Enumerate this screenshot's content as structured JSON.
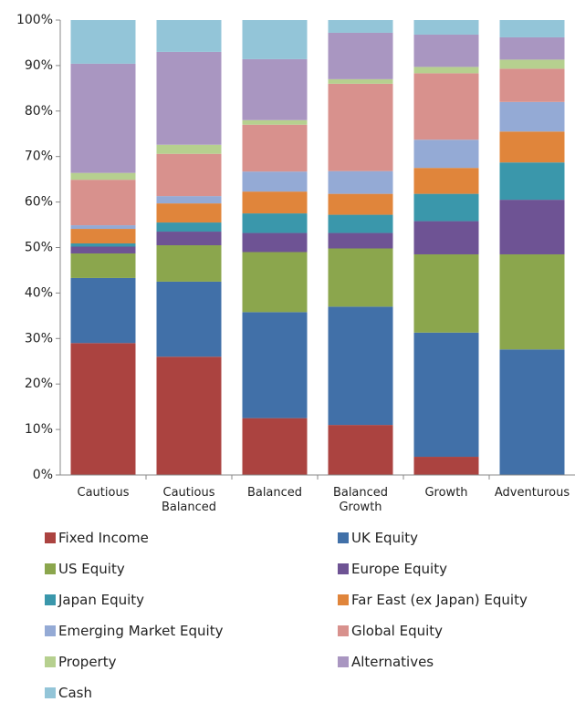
{
  "chart_data": {
    "type": "stacked_bar",
    "categories": [
      "Cautious",
      "Cautious Balanced",
      "Balanced",
      "Balanced Growth",
      "Growth",
      "Adventurous"
    ],
    "ylim": [
      0,
      100
    ],
    "yticks": [
      {
        "value": 0,
        "label": "0%"
      },
      {
        "value": 10,
        "label": "10%"
      },
      {
        "value": 20,
        "label": "20%"
      },
      {
        "value": 30,
        "label": "30%"
      },
      {
        "value": 40,
        "label": "40%"
      },
      {
        "value": 50,
        "label": "50%"
      },
      {
        "value": 60,
        "label": "60%"
      },
      {
        "value": 70,
        "label": "70%"
      },
      {
        "value": 80,
        "label": "80%"
      },
      {
        "value": 90,
        "label": "90%"
      },
      {
        "value": 100,
        "label": "100%"
      }
    ],
    "grid": false,
    "legend": "bottom",
    "series": [
      {
        "name": "Fixed Income",
        "color": "#ab4340",
        "values": [
          29,
          26,
          12.5,
          11,
          4,
          0
        ]
      },
      {
        "name": "UK Equity",
        "color": "#4170a8",
        "values": [
          14.3,
          16.5,
          23.3,
          26,
          27.3,
          27.6
        ]
      },
      {
        "name": "US Equity",
        "color": "#8ba64d",
        "values": [
          5.4,
          8,
          13.2,
          12.8,
          17.2,
          20.9
        ]
      },
      {
        "name": "Europe Equity",
        "color": "#6e5394",
        "values": [
          1.5,
          3,
          4.2,
          3.4,
          7.3,
          12
        ]
      },
      {
        "name": "Japan Equity",
        "color": "#3a97ab",
        "values": [
          0.7,
          2,
          4.3,
          4,
          6,
          8.2
        ]
      },
      {
        "name": "Far East (ex Japan) Equity",
        "color": "#e0853b",
        "values": [
          3.2,
          4.2,
          4.8,
          4.6,
          5.7,
          6.8
        ]
      },
      {
        "name": "Emerging Market Equity",
        "color": "#94aad5",
        "values": [
          0.8,
          1.6,
          4.4,
          5,
          6.2,
          6.5
        ]
      },
      {
        "name": "Global Equity",
        "color": "#d8918d",
        "values": [
          10,
          9.3,
          10.3,
          19.2,
          14.6,
          7.3
        ]
      },
      {
        "name": "Property",
        "color": "#b6d08f",
        "values": [
          1.5,
          2,
          1,
          1,
          1.4,
          2
        ]
      },
      {
        "name": "Alternatives",
        "color": "#a996c1",
        "values": [
          24,
          20.4,
          13.4,
          10.2,
          7.1,
          4.9
        ]
      },
      {
        "name": "Cash",
        "color": "#93c5d8",
        "values": [
          9.6,
          7,
          8.6,
          2.8,
          3.2,
          3.8
        ]
      }
    ]
  }
}
